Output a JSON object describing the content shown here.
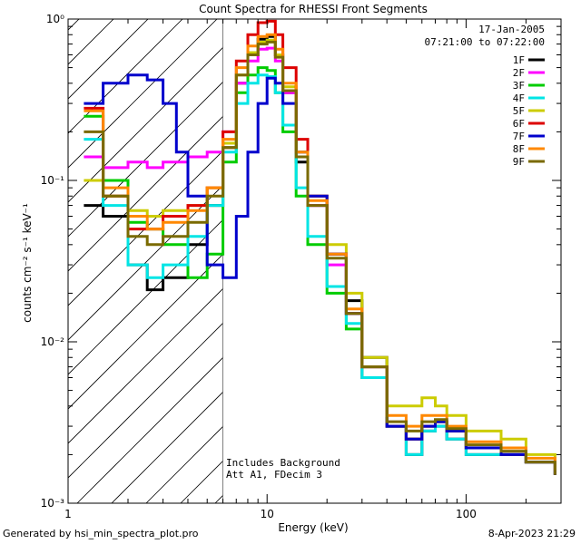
{
  "chart_data": {
    "type": "line",
    "title": "Count Spectra for RHESSI Front Segments",
    "xlabel": "Energy (keV)",
    "ylabel": "counts cm⁻² s⁻¹ keV⁻¹",
    "xscale": "log",
    "yscale": "log",
    "xlim": [
      1,
      300
    ],
    "ylim": [
      0.001,
      1
    ],
    "x_ticks": [
      {
        "v": 1,
        "label": "1"
      },
      {
        "v": 10,
        "label": "10"
      },
      {
        "v": 100,
        "label": "100"
      }
    ],
    "y_ticks": [
      {
        "v": 1,
        "label": "10⁰"
      },
      {
        "v": 0.1,
        "label": "10⁻¹"
      },
      {
        "v": 0.01,
        "label": "10⁻²"
      },
      {
        "v": 0.001,
        "label": "10⁻³"
      }
    ],
    "date": "17-Jan-2005",
    "time_range": "07:21:00 to 07:22:00",
    "hatched_region_keV": [
      1,
      6
    ],
    "annotations": [
      "Includes Background",
      "Att A1, FDecim 3"
    ],
    "legend_position": "top-right",
    "series": [
      {
        "name": "1F",
        "color": "#000000",
        "pts": [
          [
            1.2,
            0.07
          ],
          [
            1.5,
            0.06
          ],
          [
            2,
            0.03
          ],
          [
            2.5,
            0.021
          ],
          [
            3,
            0.025
          ],
          [
            4,
            0.04
          ],
          [
            5,
            0.07
          ],
          [
            6,
            0.16
          ],
          [
            7,
            0.4
          ],
          [
            8,
            0.6
          ],
          [
            9,
            0.75
          ],
          [
            10,
            0.78
          ],
          [
            11,
            0.6
          ],
          [
            12,
            0.35
          ],
          [
            14,
            0.13
          ],
          [
            16,
            0.07
          ],
          [
            20,
            0.035
          ],
          [
            25,
            0.018
          ],
          [
            30,
            0.008
          ],
          [
            40,
            0.003
          ],
          [
            50,
            0.002
          ],
          [
            60,
            0.0028
          ],
          [
            70,
            0.003
          ],
          [
            80,
            0.0025
          ],
          [
            100,
            0.002
          ],
          [
            150,
            0.002
          ],
          [
            200,
            0.0018
          ],
          [
            280,
            0.0015
          ]
        ]
      },
      {
        "name": "2F",
        "color": "#ff00ff",
        "pts": [
          [
            1.2,
            0.14
          ],
          [
            1.5,
            0.12
          ],
          [
            2,
            0.13
          ],
          [
            2.5,
            0.12
          ],
          [
            3,
            0.13
          ],
          [
            4,
            0.14
          ],
          [
            5,
            0.15
          ],
          [
            6,
            0.2
          ],
          [
            7,
            0.4
          ],
          [
            8,
            0.55
          ],
          [
            9,
            0.65
          ],
          [
            10,
            0.66
          ],
          [
            11,
            0.55
          ],
          [
            12,
            0.35
          ],
          [
            14,
            0.14
          ],
          [
            16,
            0.07
          ],
          [
            20,
            0.03
          ],
          [
            25,
            0.015
          ],
          [
            30,
            0.006
          ],
          [
            40,
            0.003
          ],
          [
            50,
            0.0025
          ],
          [
            60,
            0.003
          ],
          [
            70,
            0.0032
          ],
          [
            80,
            0.0028
          ],
          [
            100,
            0.0022
          ],
          [
            150,
            0.002
          ],
          [
            200,
            0.0018
          ],
          [
            280,
            0.0015
          ]
        ]
      },
      {
        "name": "3F",
        "color": "#00cc00",
        "pts": [
          [
            1.2,
            0.25
          ],
          [
            1.5,
            0.1
          ],
          [
            2,
            0.055
          ],
          [
            2.5,
            0.05
          ],
          [
            3,
            0.04
          ],
          [
            4,
            0.025
          ],
          [
            5,
            0.035
          ],
          [
            6,
            0.13
          ],
          [
            7,
            0.35
          ],
          [
            8,
            0.45
          ],
          [
            9,
            0.5
          ],
          [
            10,
            0.48
          ],
          [
            11,
            0.35
          ],
          [
            12,
            0.2
          ],
          [
            14,
            0.08
          ],
          [
            16,
            0.04
          ],
          [
            20,
            0.02
          ],
          [
            25,
            0.012
          ],
          [
            30,
            0.006
          ],
          [
            40,
            0.003
          ],
          [
            50,
            0.0025
          ],
          [
            60,
            0.003
          ],
          [
            70,
            0.0032
          ],
          [
            80,
            0.0028
          ],
          [
            100,
            0.0022
          ],
          [
            150,
            0.002
          ],
          [
            200,
            0.0018
          ],
          [
            280,
            0.0015
          ]
        ]
      },
      {
        "name": "4F",
        "color": "#00e5e5",
        "pts": [
          [
            1.2,
            0.18
          ],
          [
            1.5,
            0.07
          ],
          [
            2,
            0.03
          ],
          [
            2.5,
            0.025
          ],
          [
            3,
            0.03
          ],
          [
            4,
            0.045
          ],
          [
            5,
            0.07
          ],
          [
            6,
            0.15
          ],
          [
            7,
            0.3
          ],
          [
            8,
            0.4
          ],
          [
            9,
            0.45
          ],
          [
            10,
            0.44
          ],
          [
            11,
            0.35
          ],
          [
            12,
            0.22
          ],
          [
            14,
            0.09
          ],
          [
            16,
            0.045
          ],
          [
            20,
            0.022
          ],
          [
            25,
            0.013
          ],
          [
            30,
            0.006
          ],
          [
            40,
            0.003
          ],
          [
            50,
            0.002
          ],
          [
            60,
            0.0028
          ],
          [
            70,
            0.003
          ],
          [
            80,
            0.0025
          ],
          [
            100,
            0.002
          ],
          [
            150,
            0.002
          ],
          [
            200,
            0.0018
          ],
          [
            280,
            0.0015
          ]
        ]
      },
      {
        "name": "5F",
        "color": "#cccc00",
        "pts": [
          [
            1.2,
            0.1
          ],
          [
            1.5,
            0.08
          ],
          [
            2,
            0.065
          ],
          [
            2.5,
            0.06
          ],
          [
            3,
            0.065
          ],
          [
            4,
            0.07
          ],
          [
            5,
            0.09
          ],
          [
            6,
            0.17
          ],
          [
            7,
            0.45
          ],
          [
            8,
            0.62
          ],
          [
            9,
            0.72
          ],
          [
            10,
            0.74
          ],
          [
            11,
            0.6
          ],
          [
            12,
            0.38
          ],
          [
            14,
            0.15
          ],
          [
            16,
            0.08
          ],
          [
            20,
            0.04
          ],
          [
            25,
            0.02
          ],
          [
            30,
            0.008
          ],
          [
            40,
            0.004
          ],
          [
            50,
            0.004
          ],
          [
            60,
            0.0045
          ],
          [
            70,
            0.004
          ],
          [
            80,
            0.0035
          ],
          [
            100,
            0.0028
          ],
          [
            150,
            0.0025
          ],
          [
            200,
            0.002
          ],
          [
            280,
            0.0018
          ]
        ]
      },
      {
        "name": "6F",
        "color": "#dd0000",
        "pts": [
          [
            1.2,
            0.28
          ],
          [
            1.5,
            0.08
          ],
          [
            2,
            0.05
          ],
          [
            2.5,
            0.05
          ],
          [
            3,
            0.06
          ],
          [
            4,
            0.07
          ],
          [
            5,
            0.09
          ],
          [
            6,
            0.2
          ],
          [
            7,
            0.55
          ],
          [
            8,
            0.8
          ],
          [
            9,
            0.95
          ],
          [
            10,
            0.97
          ],
          [
            11,
            0.8
          ],
          [
            12,
            0.5
          ],
          [
            14,
            0.18
          ],
          [
            16,
            0.08
          ],
          [
            20,
            0.035
          ],
          [
            25,
            0.015
          ],
          [
            30,
            0.007
          ],
          [
            40,
            0.003
          ],
          [
            50,
            0.0025
          ],
          [
            60,
            0.003
          ],
          [
            70,
            0.0032
          ],
          [
            80,
            0.0028
          ],
          [
            100,
            0.0022
          ],
          [
            150,
            0.002
          ],
          [
            200,
            0.0018
          ],
          [
            280,
            0.0015
          ]
        ]
      },
      {
        "name": "7F",
        "color": "#0000cc",
        "pts": [
          [
            1.2,
            0.3
          ],
          [
            1.5,
            0.4
          ],
          [
            2,
            0.45
          ],
          [
            2.5,
            0.42
          ],
          [
            3,
            0.3
          ],
          [
            3.5,
            0.15
          ],
          [
            4,
            0.08
          ],
          [
            5,
            0.03
          ],
          [
            6,
            0.025
          ],
          [
            7,
            0.06
          ],
          [
            8,
            0.15
          ],
          [
            9,
            0.3
          ],
          [
            10,
            0.43
          ],
          [
            11,
            0.4
          ],
          [
            12,
            0.3
          ],
          [
            14,
            0.15
          ],
          [
            16,
            0.08
          ],
          [
            20,
            0.035
          ],
          [
            25,
            0.015
          ],
          [
            30,
            0.007
          ],
          [
            40,
            0.003
          ],
          [
            50,
            0.0025
          ],
          [
            60,
            0.003
          ],
          [
            70,
            0.0032
          ],
          [
            80,
            0.0028
          ],
          [
            100,
            0.0022
          ],
          [
            150,
            0.002
          ],
          [
            200,
            0.0018
          ],
          [
            280,
            0.0015
          ]
        ]
      },
      {
        "name": "8F",
        "color": "#ff8800",
        "pts": [
          [
            1.2,
            0.27
          ],
          [
            1.5,
            0.09
          ],
          [
            2,
            0.06
          ],
          [
            2.5,
            0.05
          ],
          [
            3,
            0.055
          ],
          [
            4,
            0.065
          ],
          [
            5,
            0.09
          ],
          [
            6,
            0.18
          ],
          [
            7,
            0.5
          ],
          [
            8,
            0.68
          ],
          [
            9,
            0.78
          ],
          [
            10,
            0.8
          ],
          [
            11,
            0.65
          ],
          [
            12,
            0.4
          ],
          [
            14,
            0.15
          ],
          [
            16,
            0.075
          ],
          [
            20,
            0.035
          ],
          [
            25,
            0.016
          ],
          [
            30,
            0.007
          ],
          [
            40,
            0.0035
          ],
          [
            50,
            0.003
          ],
          [
            60,
            0.0035
          ],
          [
            70,
            0.0035
          ],
          [
            80,
            0.003
          ],
          [
            100,
            0.0024
          ],
          [
            150,
            0.0022
          ],
          [
            200,
            0.0019
          ],
          [
            280,
            0.0016
          ]
        ]
      },
      {
        "name": "9F",
        "color": "#7a6a00",
        "pts": [
          [
            1.2,
            0.2
          ],
          [
            1.5,
            0.08
          ],
          [
            2,
            0.045
          ],
          [
            2.5,
            0.04
          ],
          [
            3,
            0.045
          ],
          [
            4,
            0.055
          ],
          [
            5,
            0.08
          ],
          [
            6,
            0.16
          ],
          [
            7,
            0.45
          ],
          [
            8,
            0.6
          ],
          [
            9,
            0.7
          ],
          [
            10,
            0.72
          ],
          [
            11,
            0.58
          ],
          [
            12,
            0.36
          ],
          [
            14,
            0.14
          ],
          [
            16,
            0.07
          ],
          [
            20,
            0.033
          ],
          [
            25,
            0.015
          ],
          [
            30,
            0.007
          ],
          [
            40,
            0.0032
          ],
          [
            50,
            0.0028
          ],
          [
            60,
            0.0032
          ],
          [
            70,
            0.0033
          ],
          [
            80,
            0.0029
          ],
          [
            100,
            0.0023
          ],
          [
            150,
            0.0021
          ],
          [
            200,
            0.0018
          ],
          [
            280,
            0.0015
          ]
        ]
      }
    ]
  },
  "footer": {
    "generated": "Generated by hsi_min_spectra_plot.pro",
    "timestamp": "8-Apr-2023 21:29"
  }
}
